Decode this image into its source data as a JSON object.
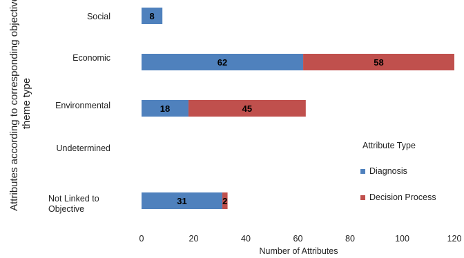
{
  "chart_data": {
    "type": "bar",
    "orientation": "horizontal",
    "stacked": true,
    "categories": [
      "Social",
      "Economic",
      "Environmental",
      "Undetermined",
      "Not Linked to Objective"
    ],
    "series": [
      {
        "name": "Diagnosis",
        "values": [
          8,
          62,
          18,
          0,
          31
        ],
        "color": "#4f81bd"
      },
      {
        "name": "Decision Process",
        "values": [
          0,
          58,
          45,
          0,
          2
        ],
        "color": "#c0504d"
      }
    ],
    "xlabel": "Number of Attributes",
    "ylabel": "Attributes according to corresponding objective theme type",
    "xlim": [
      0,
      120
    ],
    "xticks": [
      "0",
      "20",
      "40",
      "60",
      "80",
      "100",
      "120"
    ],
    "grid": false,
    "legend": {
      "title": "Attribute Type",
      "placement": "right"
    }
  }
}
